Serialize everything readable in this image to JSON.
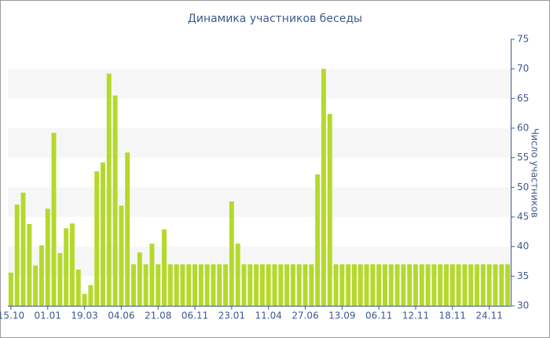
{
  "chart_data": {
    "type": "bar",
    "title": "Динамика участников беседы",
    "y_label": "Число участников",
    "categories": [
      "15.10",
      null,
      null,
      null,
      null,
      null,
      "01.01",
      null,
      null,
      null,
      null,
      null,
      "19.03",
      null,
      null,
      null,
      null,
      null,
      "04.06",
      null,
      null,
      null,
      null,
      null,
      "21.08",
      null,
      null,
      null,
      null,
      null,
      "06.11",
      null,
      null,
      null,
      null,
      null,
      "23.01",
      null,
      null,
      null,
      null,
      null,
      "11.04",
      null,
      null,
      null,
      null,
      null,
      "27.06",
      null,
      null,
      null,
      null,
      null,
      "13.09",
      null,
      null,
      null,
      null,
      null,
      "06.11",
      null,
      null,
      null,
      null,
      null,
      "12.11",
      null,
      null,
      null,
      null,
      null,
      "18.11",
      null,
      null,
      null,
      null,
      null,
      "24.11",
      null,
      null,
      null
    ],
    "values": [
      35.6,
      47.1,
      49.1,
      43.8,
      36.8,
      40.2,
      46.4,
      59.2,
      38.9,
      43.1,
      43.9,
      36.1,
      32,
      33.5,
      52.7,
      54.2,
      69.2,
      65.5,
      46.9,
      55.9,
      37,
      39,
      37,
      40.5,
      37,
      42.9,
      37,
      37,
      37,
      37,
      37,
      37,
      37,
      37,
      37,
      37,
      47.6,
      40.5,
      37,
      37,
      37,
      37,
      37,
      37,
      37,
      37,
      37,
      37,
      37,
      37,
      52.2,
      70,
      62.4,
      37,
      37,
      37,
      37,
      37,
      37,
      37,
      37,
      37,
      37,
      37,
      37,
      37,
      37,
      37,
      37,
      37,
      37,
      37,
      37,
      37,
      37,
      37,
      37,
      37,
      37,
      37,
      37,
      37
    ],
    "color": "#b5d92a",
    "ylim": [
      30,
      75
    ],
    "yticks": [
      30,
      35,
      40,
      45,
      50,
      55,
      60,
      65,
      70,
      75
    ],
    "y_axis_side": "right",
    "grid": "bands"
  }
}
